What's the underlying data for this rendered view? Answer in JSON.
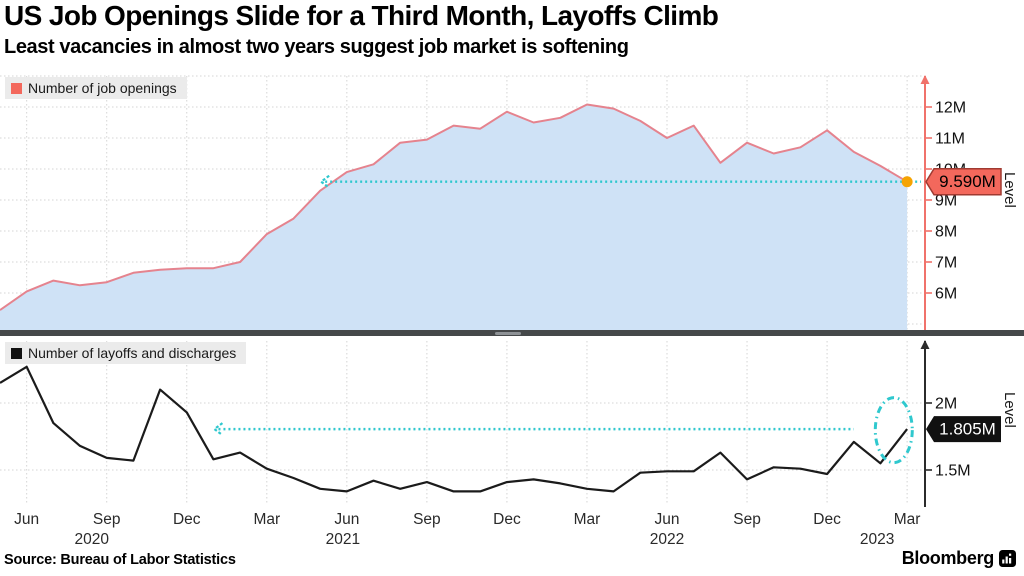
{
  "header": {
    "title": "US Job Openings Slide for a Third Month, Layoffs Climb",
    "subtitle": "Least vacancies in almost two years suggest job market is softening"
  },
  "footer": {
    "source": "Source: Bureau of Labor Statistics",
    "brand": "Bloomberg",
    "brand_icon": "bloomberg-terminal-icon"
  },
  "colors": {
    "openings_line": "#e5838e",
    "openings_fill": "#cfe2f6",
    "openings_axis": "#f0726b",
    "openings_callout_bg": "#f3685c",
    "openings_callout_border": "#a03a31",
    "layoffs_line": "#1b1b1b",
    "layoffs_axis": "#2b2b2b",
    "layoffs_callout_bg": "#111111",
    "cyan_reference": "#2fc8ce",
    "orange_marker": "#f5a302",
    "grid": "#d4d4d4",
    "legend_bg": "#ebebeb",
    "divider": "#45484a",
    "tick_text": "#111111",
    "x_tick_text": "#2a2a2a"
  },
  "x_axis": {
    "ticks": [
      {
        "month": "Jun 2020",
        "label": "Jun"
      },
      {
        "month": "Sep 2020",
        "label": "Sep",
        "year": "2020"
      },
      {
        "month": "Dec 2020",
        "label": "Dec"
      },
      {
        "month": "Mar 2021",
        "label": "Mar"
      },
      {
        "month": "Jun 2021",
        "label": "Jun",
        "year": "2021"
      },
      {
        "month": "Sep 2021",
        "label": "Sep"
      },
      {
        "month": "Dec 2021",
        "label": "Dec"
      },
      {
        "month": "Mar 2022",
        "label": "Mar"
      },
      {
        "month": "Jun 2022",
        "label": "Jun",
        "year": "2022"
      },
      {
        "month": "Sep 2022",
        "label": "Sep"
      },
      {
        "month": "Dec 2022",
        "label": "Dec"
      },
      {
        "month": "Mar 2023",
        "label": "Mar",
        "year": "2023"
      }
    ]
  },
  "chart_data": [
    {
      "type": "area",
      "legend": {
        "label": "Number of job openings"
      },
      "unit": "millions",
      "axis_label": "Level",
      "x_months": [
        "May 2020",
        "Jun 2020",
        "Jul 2020",
        "Aug 2020",
        "Sep 2020",
        "Oct 2020",
        "Nov 2020",
        "Dec 2020",
        "Jan 2021",
        "Feb 2021",
        "Mar 2021",
        "Apr 2021",
        "May 2021",
        "Jun 2021",
        "Jul 2021",
        "Aug 2021",
        "Sep 2021",
        "Oct 2021",
        "Nov 2021",
        "Dec 2021",
        "Jan 2022",
        "Feb 2022",
        "Mar 2022",
        "Apr 2022",
        "May 2022",
        "Jun 2022",
        "Jul 2022",
        "Aug 2022",
        "Sep 2022",
        "Oct 2022",
        "Nov 2022",
        "Dec 2022",
        "Jan 2023",
        "Feb 2023",
        "Mar 2023"
      ],
      "values": [
        5.45,
        6.05,
        6.4,
        6.25,
        6.35,
        6.65,
        6.75,
        6.8,
        6.8,
        7.0,
        7.9,
        8.4,
        9.3,
        9.9,
        10.15,
        10.85,
        10.95,
        11.4,
        11.3,
        11.85,
        11.5,
        11.65,
        12.08,
        11.95,
        11.55,
        11.0,
        11.4,
        10.2,
        10.85,
        10.5,
        10.7,
        11.25,
        10.55,
        10.1,
        9.59
      ],
      "ylim": [
        4.8,
        13.0
      ],
      "yticks": [
        {
          "value": 12,
          "label": "12M"
        },
        {
          "value": 11,
          "label": "11M"
        },
        {
          "value": 10,
          "label": "10M"
        },
        {
          "value": 9,
          "label": "9M"
        },
        {
          "value": 8,
          "label": "8M"
        },
        {
          "value": 7,
          "label": "7M"
        },
        {
          "value": 6,
          "label": "6M"
        }
      ],
      "unlabeled_gridlines": [
        13,
        5
      ],
      "last_point_callout": {
        "label": "9.590M",
        "value": 9.59
      },
      "last_point_marker": "orange-dot",
      "reference_line": {
        "level": 9.59,
        "start_month": "May 2021",
        "end_month": "Mar 2023",
        "extends_to_axis": true
      }
    },
    {
      "type": "line",
      "legend": {
        "label": "Number of layoffs and discharges"
      },
      "unit": "millions",
      "axis_label": "Level",
      "x_months": [
        "May 2020",
        "Jun 2020",
        "Jul 2020",
        "Aug 2020",
        "Sep 2020",
        "Oct 2020",
        "Nov 2020",
        "Dec 2020",
        "Jan 2021",
        "Feb 2021",
        "Mar 2021",
        "Apr 2021",
        "May 2021",
        "Jun 2021",
        "Jul 2021",
        "Aug 2021",
        "Sep 2021",
        "Oct 2021",
        "Nov 2021",
        "Dec 2021",
        "Jan 2022",
        "Feb 2022",
        "Mar 2022",
        "Apr 2022",
        "May 2022",
        "Jun 2022",
        "Jul 2022",
        "Aug 2022",
        "Sep 2022",
        "Oct 2022",
        "Nov 2022",
        "Dec 2022",
        "Jan 2023",
        "Feb 2023",
        "Mar 2023"
      ],
      "values": [
        2.15,
        2.27,
        1.85,
        1.68,
        1.59,
        1.57,
        2.1,
        1.93,
        1.58,
        1.63,
        1.51,
        1.44,
        1.36,
        1.34,
        1.42,
        1.36,
        1.41,
        1.34,
        1.34,
        1.41,
        1.43,
        1.4,
        1.36,
        1.34,
        1.48,
        1.49,
        1.49,
        1.63,
        1.43,
        1.52,
        1.51,
        1.47,
        1.71,
        1.55,
        1.805
      ],
      "ylim": [
        1.22,
        2.45
      ],
      "yticks": [
        {
          "value": 2,
          "label": "2M"
        },
        {
          "value": 1.5,
          "label": "1.5M"
        }
      ],
      "unlabeled_gridlines": [
        2.5
      ],
      "last_point_callout": {
        "label": "1.805M",
        "value": 1.805
      },
      "reference_line": {
        "level": 1.805,
        "start_month": "Jan 2021",
        "end_month": "Jan 2023",
        "extends_to_axis": false
      },
      "highlight_ellipse": {
        "months": [
          "Feb 2023",
          "Mar 2023"
        ],
        "level": 1.805
      }
    }
  ]
}
